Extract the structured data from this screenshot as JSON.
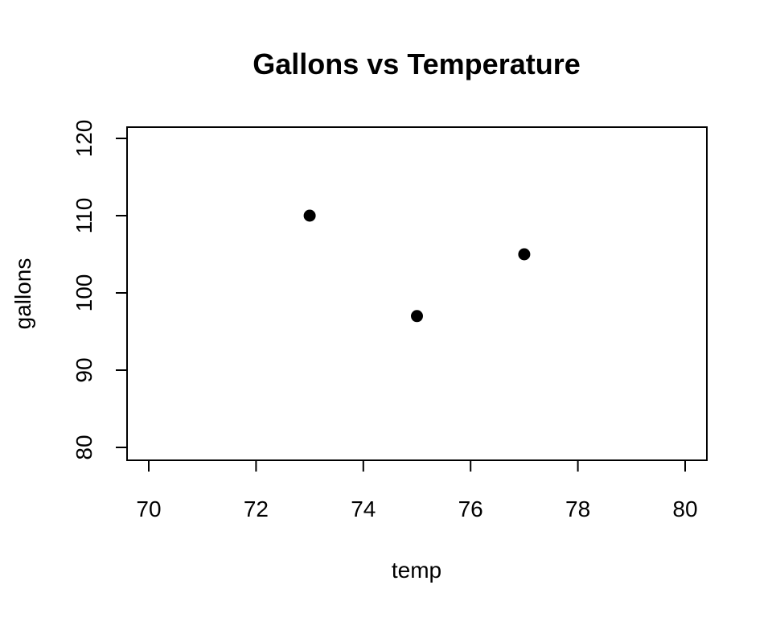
{
  "chart_data": {
    "type": "scatter",
    "title": "Gallons vs Temperature",
    "xlabel": "temp",
    "ylabel": "gallons",
    "xlim": [
      70,
      80
    ],
    "ylim": [
      80,
      120
    ],
    "x_ticks": [
      70,
      72,
      74,
      76,
      78,
      80
    ],
    "y_ticks": [
      80,
      90,
      100,
      110,
      120
    ],
    "series": [
      {
        "points": [
          {
            "x": 73,
            "y": 110
          },
          {
            "x": 75,
            "y": 97
          },
          {
            "x": 77,
            "y": 105
          }
        ]
      }
    ],
    "grid": false,
    "point_color": "#000000"
  }
}
